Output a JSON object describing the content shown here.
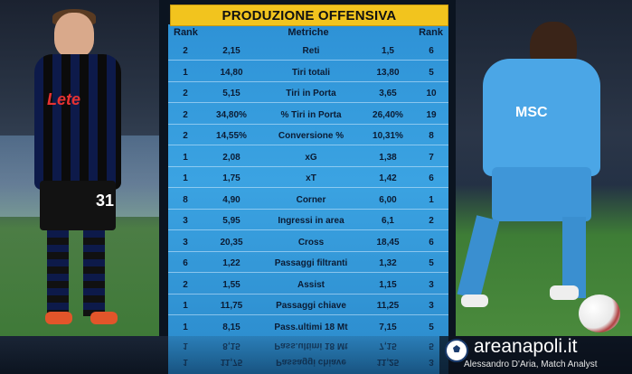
{
  "title": "PRODUZIONE OFFENSIVA",
  "header": {
    "rank_left": "Rank",
    "metric": "Metriche",
    "rank_right": "Rank"
  },
  "left_player": {
    "sponsor": "Lete",
    "number": "31"
  },
  "right_player": {
    "sponsor": "MSC"
  },
  "rows": [
    {
      "rank_l": "2",
      "val_l": "2,15",
      "metric": "Reti",
      "val_r": "1,5",
      "rank_r": "6"
    },
    {
      "rank_l": "1",
      "val_l": "14,80",
      "metric": "Tiri totali",
      "val_r": "13,80",
      "rank_r": "5"
    },
    {
      "rank_l": "2",
      "val_l": "5,15",
      "metric": "Tiri in Porta",
      "val_r": "3,65",
      "rank_r": "10"
    },
    {
      "rank_l": "2",
      "val_l": "34,80%",
      "metric": "% Tiri in Porta",
      "val_r": "26,40%",
      "rank_r": "19"
    },
    {
      "rank_l": "2",
      "val_l": "14,55%",
      "metric": "Conversione %",
      "val_r": "10,31%",
      "rank_r": "8"
    },
    {
      "rank_l": "1",
      "val_l": "2,08",
      "metric": "xG",
      "val_r": "1,38",
      "rank_r": "7"
    },
    {
      "rank_l": "1",
      "val_l": "1,75",
      "metric": "xT",
      "val_r": "1,42",
      "rank_r": "6"
    },
    {
      "rank_l": "8",
      "val_l": "4,90",
      "metric": "Corner",
      "val_r": "6,00",
      "rank_r": "1"
    },
    {
      "rank_l": "3",
      "val_l": "5,95",
      "metric": "Ingressi in area",
      "val_r": "6,1",
      "rank_r": "2"
    },
    {
      "rank_l": "3",
      "val_l": "20,35",
      "metric": "Cross",
      "val_r": "18,45",
      "rank_r": "6"
    },
    {
      "rank_l": "6",
      "val_l": "1,22",
      "metric": "Passaggi filtranti",
      "val_r": "1,32",
      "rank_r": "5"
    },
    {
      "rank_l": "2",
      "val_l": "1,55",
      "metric": "Assist",
      "val_r": "1,15",
      "rank_r": "3"
    },
    {
      "rank_l": "1",
      "val_l": "11,75",
      "metric": "Passaggi chiave",
      "val_r": "11,25",
      "rank_r": "3"
    },
    {
      "rank_l": "1",
      "val_l": "8,15",
      "metric": "Pass.ultimi 18 Mt",
      "val_r": "7,15",
      "rank_r": "5"
    }
  ],
  "branding": {
    "site": "areanapoli.it",
    "author": "Alessandro D'Aria, Match Analyst"
  },
  "colors": {
    "title_bg": "#f2c41e",
    "table_bg": "#3ba3e2",
    "text": "#0b1b33"
  }
}
